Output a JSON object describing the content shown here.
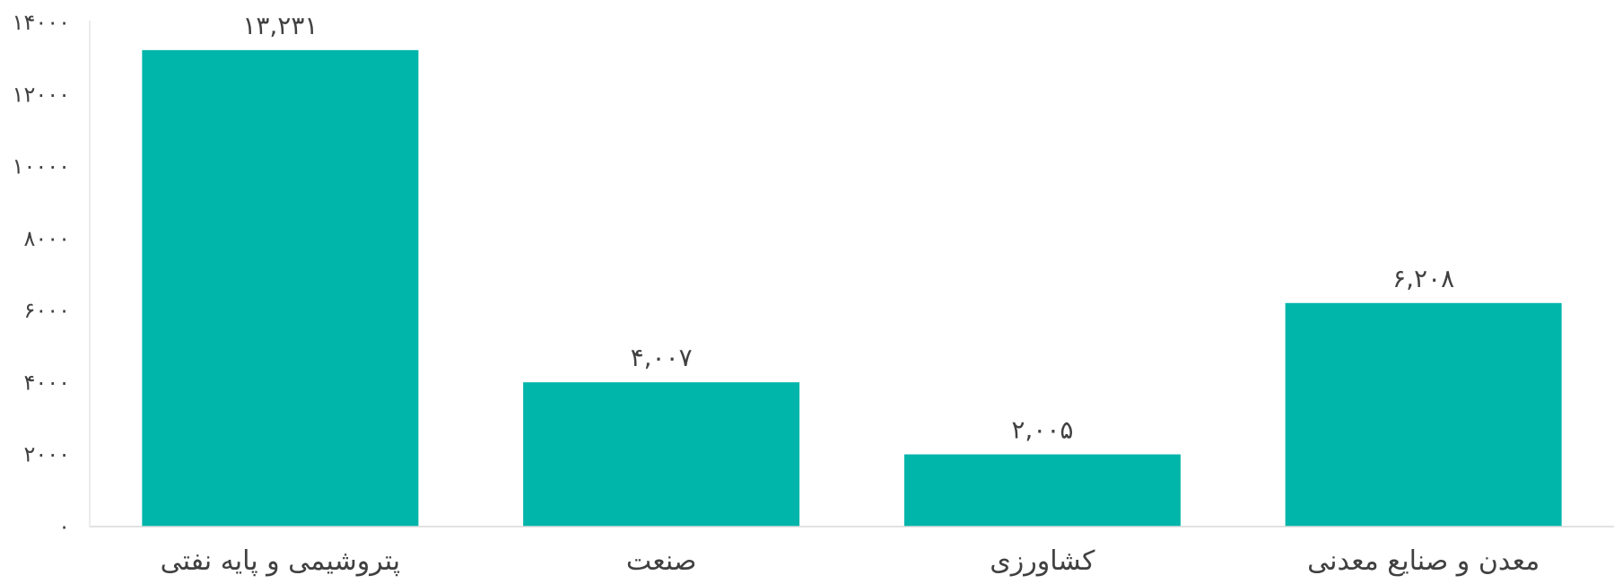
{
  "chart_data": {
    "type": "bar",
    "categories": [
      "پتروشیمی و پایه نفتی",
      "صنعت",
      "کشاورزی",
      "معدن و صنایع معدنی"
    ],
    "values": [
      13231,
      4007,
      2005,
      6208
    ],
    "data_labels": [
      "۱۳,۲۳۱",
      "۴,۰۰۷",
      "۲,۰۰۵",
      "۶,۲۰۸"
    ],
    "ylim": [
      0,
      14000
    ],
    "y_ticks": [
      0,
      2000,
      4000,
      6000,
      8000,
      10000,
      12000,
      14000
    ],
    "y_tick_labels": [
      "۰",
      "۲۰۰۰",
      "۴۰۰۰",
      "۶۰۰۰",
      "۸۰۰۰",
      "۱۰۰۰۰",
      "۱۲۰۰۰",
      "۱۴۰۰۰"
    ],
    "title": "",
    "xlabel": "",
    "ylabel": "",
    "grid": false,
    "legend": "none",
    "bar_color": "#00B5AA",
    "axis_color": "#D9D9D9",
    "text_color": "#404040"
  }
}
